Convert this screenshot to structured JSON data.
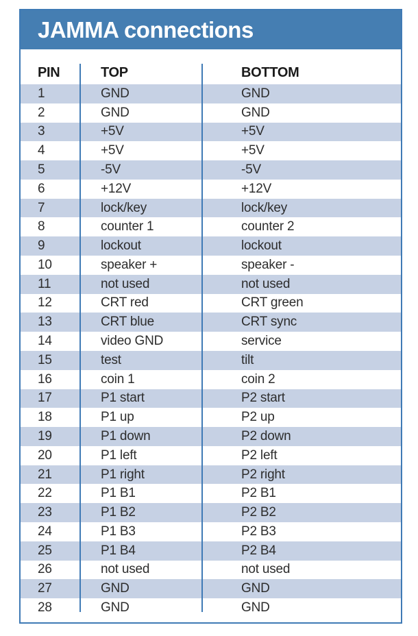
{
  "title": "JAMMA connections",
  "columns": {
    "pin": "PIN",
    "top": "TOP",
    "bottom": "BOTTOM"
  },
  "rows": [
    {
      "pin": "1",
      "top": "GND",
      "bottom": "GND"
    },
    {
      "pin": "2",
      "top": "GND",
      "bottom": "GND"
    },
    {
      "pin": "3",
      "top": "+5V",
      "bottom": "+5V"
    },
    {
      "pin": "4",
      "top": "+5V",
      "bottom": "+5V"
    },
    {
      "pin": "5",
      "top": "-5V",
      "bottom": "-5V"
    },
    {
      "pin": "6",
      "top": "+12V",
      "bottom": "+12V"
    },
    {
      "pin": "7",
      "top": "lock/key",
      "bottom": "lock/key"
    },
    {
      "pin": "8",
      "top": "counter 1",
      "bottom": "counter 2"
    },
    {
      "pin": "9",
      "top": "lockout",
      "bottom": "lockout"
    },
    {
      "pin": "10",
      "top": "speaker +",
      "bottom": "speaker -"
    },
    {
      "pin": "11",
      "top": "not used",
      "bottom": "not used"
    },
    {
      "pin": "12",
      "top": "CRT red",
      "bottom": "CRT green"
    },
    {
      "pin": "13",
      "top": "CRT blue",
      "bottom": "CRT sync"
    },
    {
      "pin": "14",
      "top": "video GND",
      "bottom": "service"
    },
    {
      "pin": "15",
      "top": "test",
      "bottom": "tilt"
    },
    {
      "pin": "16",
      "top": "coin 1",
      "bottom": "coin 2"
    },
    {
      "pin": "17",
      "top": "P1 start",
      "bottom": "P2 start"
    },
    {
      "pin": "18",
      "top": "P1 up",
      "bottom": "P2 up"
    },
    {
      "pin": "19",
      "top": "P1 down",
      "bottom": "P2 down"
    },
    {
      "pin": "20",
      "top": "P1 left",
      "bottom": "P2 left"
    },
    {
      "pin": "21",
      "top": "P1 right",
      "bottom": "P2 right"
    },
    {
      "pin": "22",
      "top": "P1 B1",
      "bottom": "P2 B1"
    },
    {
      "pin": "23",
      "top": "P1 B2",
      "bottom": "P2 B2"
    },
    {
      "pin": "24",
      "top": "P1 B3",
      "bottom": "P2 B3"
    },
    {
      "pin": "25",
      "top": "P1 B4",
      "bottom": "P2 B4"
    },
    {
      "pin": "26",
      "top": "not used",
      "bottom": "not used"
    },
    {
      "pin": "27",
      "top": "GND",
      "bottom": "GND"
    },
    {
      "pin": "28",
      "top": "GND",
      "bottom": "GND"
    }
  ],
  "colors": {
    "header_bar": "#457EB2",
    "stripe": "#C6D1E4",
    "border": "#3F7AB5",
    "text": "#2D2D2D",
    "header_text": "#1A1A1A",
    "title_text": "#FFFFFF"
  }
}
